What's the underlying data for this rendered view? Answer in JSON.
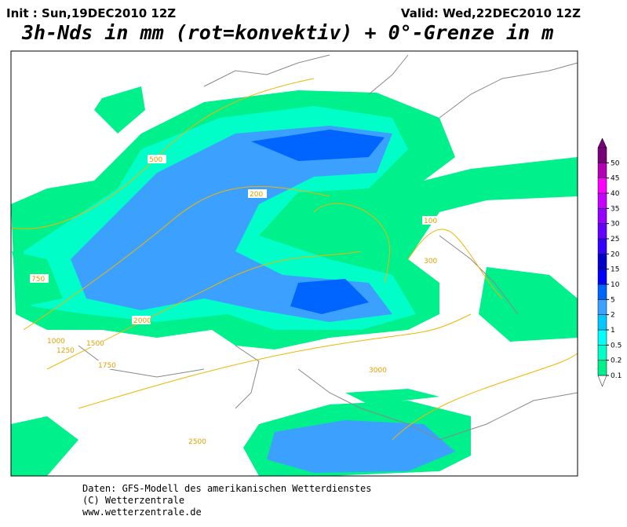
{
  "header": {
    "init": "Init : Sun,19DEC2010 12Z",
    "valid": "Valid: Wed,22DEC2010 12Z",
    "title": "3h-Nds in mm (rot=konvektiv) + 0°-Grenze in m"
  },
  "colorbar": {
    "levels": [
      0.1,
      0.2,
      0.5,
      1,
      2,
      5,
      10,
      15,
      20,
      25,
      30,
      35,
      40,
      45,
      50
    ],
    "colors": [
      "#00f08c",
      "#00ffc8",
      "#00ffff",
      "#00c8ff",
      "#3ca0ff",
      "#0064ff",
      "#0000ff",
      "#0000c8",
      "#3200ff",
      "#6400ff",
      "#9600ff",
      "#c800ff",
      "#ff00ff",
      "#b400b4",
      "#780078"
    ]
  },
  "map": {
    "contour_labels": [
      "500",
      "1000",
      "1250",
      "1500",
      "1750",
      "2000",
      "2500",
      "3000",
      "200",
      "750",
      "100",
      "300"
    ]
  },
  "footer": [
    "Daten: GFS-Modell des amerikanischen Wetterdienstes",
    "(C) Wetterzentrale",
    "www.wetterzentrale.de"
  ]
}
